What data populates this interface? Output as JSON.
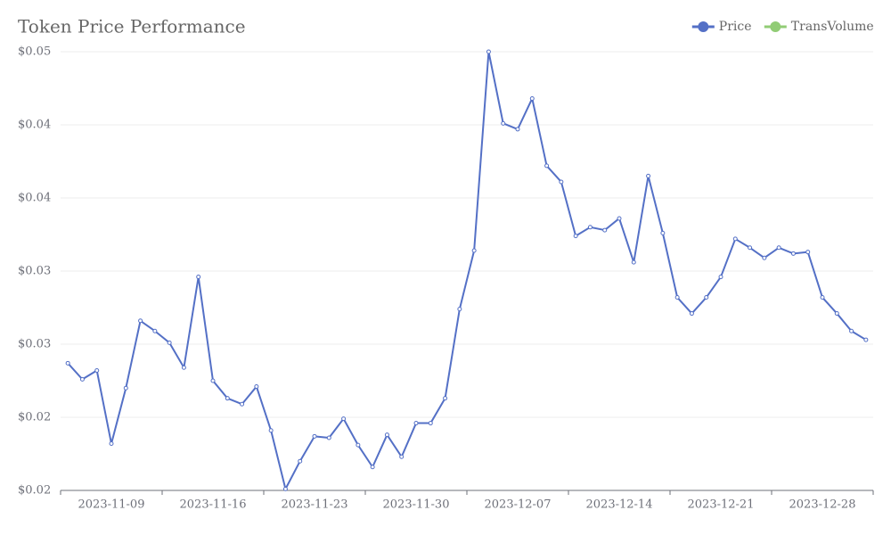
{
  "chart_data": {
    "type": "line",
    "title": "Token Price Performance",
    "categories": [
      null,
      null,
      null,
      "2023-11-09",
      null,
      null,
      null,
      null,
      null,
      null,
      "2023-11-16",
      null,
      null,
      null,
      null,
      null,
      null,
      "2023-11-23",
      null,
      null,
      null,
      null,
      null,
      null,
      "2023-11-30",
      null,
      null,
      null,
      null,
      null,
      null,
      "2023-12-07",
      null,
      null,
      null,
      null,
      null,
      null,
      "2023-12-14",
      null,
      null,
      null,
      null,
      null,
      null,
      "2023-12-21",
      null,
      null,
      null,
      null,
      null,
      null,
      "2023-12-28",
      null,
      null,
      null
    ],
    "series": [
      {
        "name": "Price",
        "color": "#5470c6",
        "values": [
          0.0287,
          0.0276,
          0.0282,
          0.0232,
          0.027,
          0.0316,
          0.0309,
          0.0301,
          0.0284,
          0.0346,
          0.0275,
          0.0263,
          0.0259,
          0.0271,
          0.0241,
          0.0201,
          0.022,
          0.0237,
          0.0236,
          0.0249,
          0.0231,
          0.0216,
          0.0238,
          0.0223,
          0.0246,
          0.0246,
          0.0263,
          0.0324,
          0.0364,
          0.05,
          0.0451,
          0.0447,
          0.0468,
          0.0422,
          0.0411,
          0.0374,
          0.038,
          0.0378,
          0.0386,
          0.0356,
          0.0415,
          0.0376,
          0.0332,
          0.0321,
          0.0332,
          0.0346,
          0.0372,
          0.0366,
          0.0359,
          0.0366,
          0.0362,
          0.0363,
          0.0332,
          0.0321,
          0.0309,
          0.0303
        ]
      },
      {
        "name": "TransVolume",
        "color": "#91cc75",
        "values": [
          null,
          null,
          null,
          null,
          null,
          null,
          null,
          null,
          null,
          null,
          null,
          null,
          null,
          null,
          null,
          null,
          null,
          null,
          null,
          null,
          null,
          null,
          null,
          null,
          null,
          null,
          null,
          null,
          null,
          null,
          null,
          null,
          null,
          null,
          null,
          null,
          null,
          null,
          null,
          null,
          null,
          null,
          null,
          null,
          null,
          null,
          null,
          null,
          null,
          null,
          null,
          null,
          null,
          null,
          null,
          null
        ]
      }
    ],
    "ylim": [
      0.02,
      0.05
    ],
    "yticks": [
      {
        "value": 0.02,
        "label": "$0.02"
      },
      {
        "value": 0.025,
        "label": "$0.02"
      },
      {
        "value": 0.03,
        "label": "$0.03"
      },
      {
        "value": 0.035,
        "label": "$0.03"
      },
      {
        "value": 0.04,
        "label": "$0.04"
      },
      {
        "value": 0.045,
        "label": "$0.04"
      },
      {
        "value": 0.05,
        "label": "$0.05"
      }
    ],
    "grid": true,
    "legend": "top-right"
  }
}
